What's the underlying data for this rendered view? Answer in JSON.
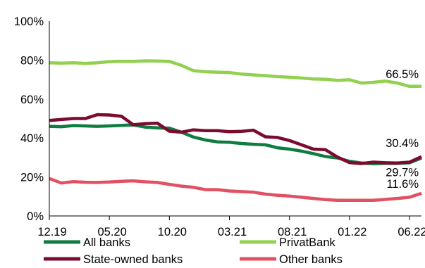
{
  "chart_data": {
    "type": "line",
    "x": [
      "12.19",
      "01.20",
      "02.20",
      "03.20",
      "04.20",
      "05.20",
      "06.20",
      "07.20",
      "08.20",
      "09.20",
      "10.20",
      "11.20",
      "12.20",
      "01.21",
      "02.21",
      "03.21",
      "04.21",
      "05.21",
      "06.21",
      "07.21",
      "08.21",
      "09.21",
      "10.21",
      "11.21",
      "12.21",
      "01.22",
      "02.22",
      "03.22",
      "04.22",
      "05.22",
      "06.22",
      "07.22"
    ],
    "x_tick_labels": [
      "12.19",
      "05.20",
      "10.20",
      "03.21",
      "08.21",
      "01.22",
      "06.22"
    ],
    "y_ticks": [
      "0%",
      "20%",
      "40%",
      "60%",
      "80%",
      "100%"
    ],
    "ylim": [
      0,
      100
    ],
    "title": "",
    "xlabel": "",
    "ylabel": "",
    "grid": false,
    "legend_position": "bottom",
    "series": [
      {
        "name": "All banks",
        "color": "#107c41",
        "values": [
          46.0,
          45.8,
          46.4,
          46.2,
          46.0,
          46.2,
          46.5,
          46.7,
          45.6,
          45.2,
          45.0,
          43.0,
          40.5,
          39.0,
          38.0,
          37.8,
          37.2,
          36.8,
          36.5,
          35.0,
          34.3,
          33.3,
          32.0,
          30.5,
          29.8,
          28.0,
          27.2,
          26.8,
          27.0,
          27.0,
          27.3,
          29.7
        ]
      },
      {
        "name": "PrivatBank",
        "color": "#92d050",
        "values": [
          78.6,
          78.4,
          78.6,
          78.3,
          78.6,
          79.2,
          79.4,
          79.3,
          79.6,
          79.5,
          79.3,
          77.3,
          74.6,
          74.0,
          73.8,
          73.6,
          72.8,
          72.4,
          72.0,
          71.5,
          71.2,
          70.8,
          70.3,
          70.1,
          69.6,
          69.9,
          68.2,
          68.6,
          69.2,
          68.2,
          66.5,
          66.5
        ]
      },
      {
        "name": "State-owned banks",
        "color": "#7b0c2f",
        "values": [
          49.0,
          49.5,
          50.0,
          50.0,
          52.0,
          51.8,
          51.2,
          46.8,
          47.4,
          47.6,
          43.5,
          43.0,
          44.2,
          43.8,
          43.8,
          43.2,
          43.4,
          44.0,
          40.6,
          40.3,
          38.7,
          36.5,
          34.3,
          34.0,
          30.2,
          27.4,
          26.9,
          27.6,
          27.3,
          27.2,
          27.6,
          30.4
        ]
      },
      {
        "name": "Other banks",
        "color": "#e05263",
        "values": [
          19.2,
          16.9,
          17.6,
          17.3,
          17.2,
          17.4,
          17.8,
          18.0,
          17.5,
          17.2,
          16.2,
          15.3,
          14.7,
          13.5,
          13.5,
          12.8,
          12.5,
          12.2,
          11.2,
          10.6,
          10.2,
          9.6,
          9.0,
          8.4,
          8.0,
          8.0,
          8.0,
          8.0,
          8.5,
          9.0,
          9.6,
          11.6
        ]
      }
    ],
    "annotations": [
      {
        "series": "PrivatBank",
        "text": "66.5%"
      },
      {
        "series": "State-owned banks",
        "text": "30.4%"
      },
      {
        "series": "All banks",
        "text": "29.7%"
      },
      {
        "series": "Other banks",
        "text": "11.6%"
      }
    ]
  }
}
